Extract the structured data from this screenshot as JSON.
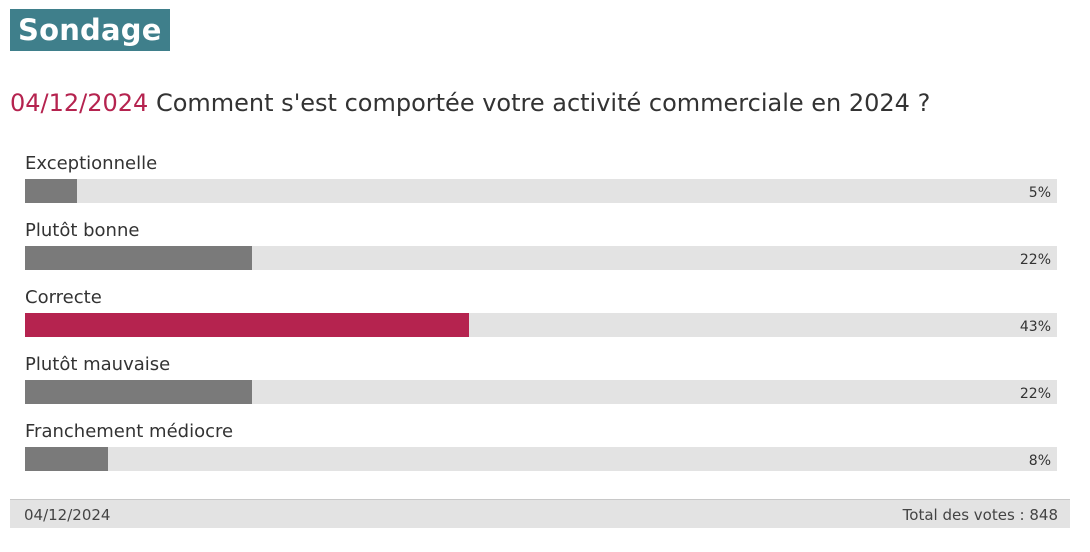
{
  "header": {
    "badge": "Sondage"
  },
  "poll": {
    "date": "04/12/2024",
    "question": "Comment s'est comportée votre activité commerciale en 2024 ?",
    "options": [
      {
        "label": "Exceptionnelle",
        "percent": 5,
        "percent_text": "5%",
        "selected": false
      },
      {
        "label": "Plutôt bonne",
        "percent": 22,
        "percent_text": "22%",
        "selected": false
      },
      {
        "label": "Correcte",
        "percent": 43,
        "percent_text": "43%",
        "selected": true
      },
      {
        "label": "Plutôt mauvaise",
        "percent": 22,
        "percent_text": "22%",
        "selected": false
      },
      {
        "label": "Franchement médiocre",
        "percent": 8,
        "percent_text": "8%",
        "selected": false
      }
    ]
  },
  "footer": {
    "date": "04/12/2024",
    "total": "Total des votes : 848"
  },
  "colors": {
    "badge": "#3f7f8b",
    "accent": "#b5234f",
    "bar": "#7a7a7a",
    "track": "#e3e3e3"
  }
}
